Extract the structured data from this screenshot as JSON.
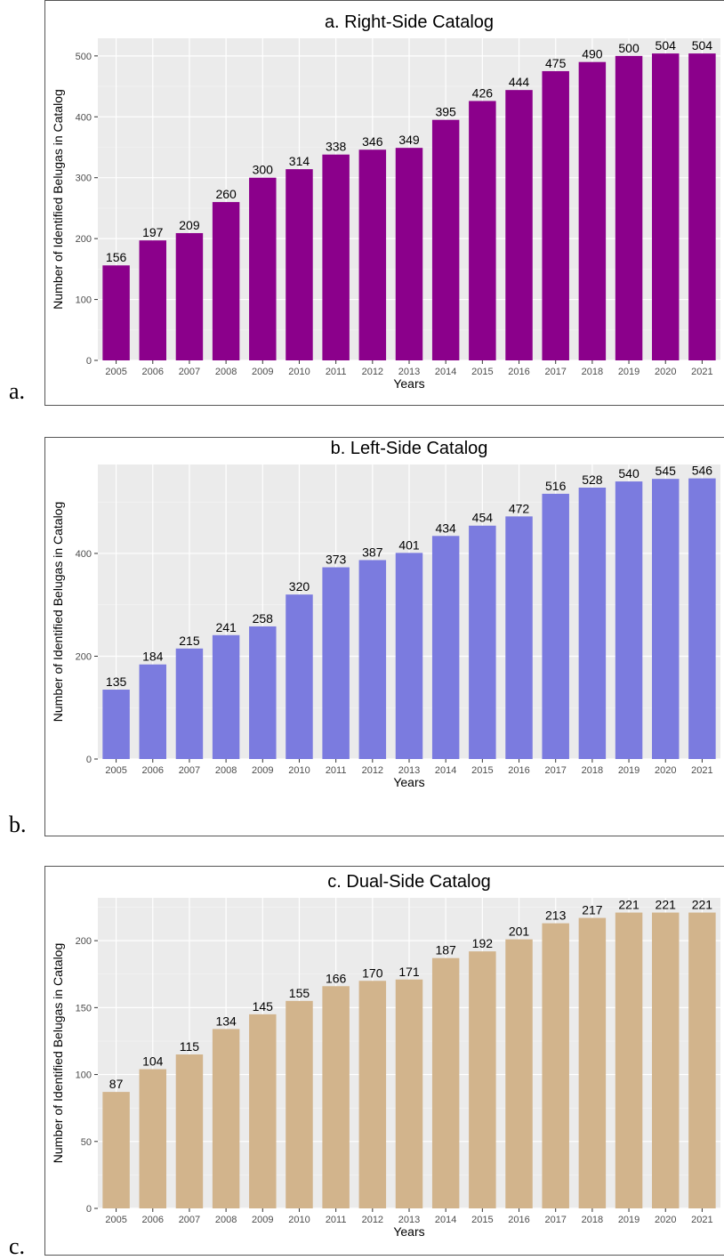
{
  "panel_letters": [
    "a.",
    "b.",
    "c."
  ],
  "chart_data": [
    {
      "type": "bar",
      "title": "a. Right-Side Catalog",
      "xlabel": "Years",
      "ylabel": "Number of Identified Belugas in Catalog",
      "categories": [
        "2005",
        "2006",
        "2007",
        "2008",
        "2009",
        "2010",
        "2011",
        "2012",
        "2013",
        "2014",
        "2015",
        "2016",
        "2017",
        "2018",
        "2019",
        "2020",
        "2021"
      ],
      "values": [
        156,
        197,
        209,
        260,
        300,
        314,
        338,
        346,
        349,
        395,
        426,
        444,
        475,
        490,
        500,
        504,
        504
      ],
      "ylim": [
        0,
        529
      ],
      "yticks": [
        0,
        100,
        200,
        300,
        400,
        500
      ],
      "bar_color": "#8b008b",
      "grid": true
    },
    {
      "type": "bar",
      "title": "b. Left-Side Catalog",
      "xlabel": "Years",
      "ylabel": "Number of Identified Belugas in Catalog",
      "categories": [
        "2005",
        "2006",
        "2007",
        "2008",
        "2009",
        "2010",
        "2011",
        "2012",
        "2013",
        "2014",
        "2015",
        "2016",
        "2017",
        "2018",
        "2019",
        "2020",
        "2021"
      ],
      "values": [
        135,
        184,
        215,
        241,
        258,
        320,
        373,
        387,
        401,
        434,
        454,
        472,
        516,
        528,
        540,
        545,
        546
      ],
      "ylim": [
        0,
        573
      ],
      "yticks": [
        0,
        200,
        400
      ],
      "bar_color": "#7b7bdf",
      "grid": true
    },
    {
      "type": "bar",
      "title": "c. Dual-Side Catalog",
      "xlabel": "Years",
      "ylabel": "Number of Identified Belugas in Catalog",
      "categories": [
        "2005",
        "2006",
        "2007",
        "2008",
        "2009",
        "2010",
        "2011",
        "2012",
        "2013",
        "2014",
        "2015",
        "2016",
        "2017",
        "2018",
        "2019",
        "2020",
        "2021"
      ],
      "values": [
        87,
        104,
        115,
        134,
        145,
        155,
        166,
        170,
        171,
        187,
        192,
        201,
        213,
        217,
        221,
        221,
        221
      ],
      "ylim": [
        0,
        232
      ],
      "yticks": [
        0,
        50,
        100,
        150,
        200
      ],
      "bar_color": "#d2b48c",
      "grid": true
    }
  ]
}
